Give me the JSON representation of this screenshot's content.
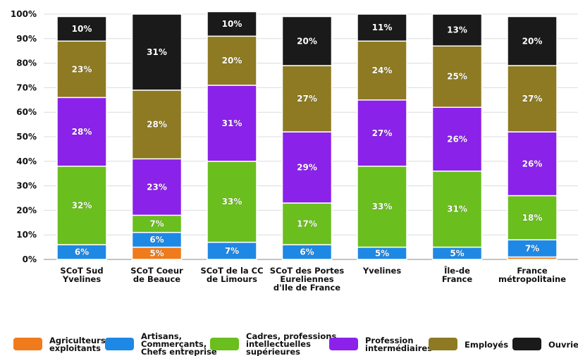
{
  "chart_data": {
    "type": "bar",
    "stacked": true,
    "normalized": true,
    "categories": [
      "SCoT Sud\nYvelines",
      "SCoT Coeur\nde Beauce",
      "SCoT de la CC\nde Limours",
      "SCoT des Portes\nEureliennes\nd'Ile de France",
      "Yvelines",
      "Île-de\nFrance",
      "France\nmétropolitaine"
    ],
    "series": [
      {
        "name": "Agriculteurs, exploitants",
        "color": "#f07b1c",
        "values": [
          0,
          5,
          0,
          0,
          0,
          0,
          1
        ]
      },
      {
        "name": "Artisans, Commerçants, Chefs entreprise",
        "color": "#1e88e5",
        "values": [
          6,
          6,
          7,
          6,
          5,
          5,
          7
        ]
      },
      {
        "name": "Cadres, professions intellectuelles supérieures",
        "color": "#6abe1e",
        "values": [
          32,
          7,
          33,
          17,
          33,
          31,
          18
        ]
      },
      {
        "name": "Profession intermédiaires",
        "color": "#8a22ea",
        "values": [
          28,
          23,
          31,
          29,
          27,
          26,
          26
        ]
      },
      {
        "name": "Employés",
        "color": "#8d7a22",
        "values": [
          23,
          28,
          20,
          27,
          24,
          25,
          27
        ]
      },
      {
        "name": "Ouvriers",
        "color": "#1a1a1a",
        "values": [
          10,
          31,
          10,
          20,
          11,
          13,
          20
        ]
      }
    ],
    "labels": [
      [
        "",
        "5%",
        "",
        "",
        "",
        "",
        ""
      ],
      [
        "6%",
        "6%",
        "7%",
        "6%",
        "5%",
        "5%",
        "7%"
      ],
      [
        "32%",
        "7%",
        "33%",
        "17%",
        "33%",
        "31%",
        "18%"
      ],
      [
        "28%",
        "23%",
        "31%",
        "29%",
        "27%",
        "26%",
        "26%"
      ],
      [
        "23%",
        "28%",
        "20%",
        "27%",
        "24%",
        "25%",
        "27%"
      ],
      [
        "10%",
        "31%",
        "10%",
        "20%",
        "11%",
        "13%",
        "20%"
      ]
    ],
    "yticks": [
      "0%",
      "10%",
      "20%",
      "30%",
      "40%",
      "50%",
      "60%",
      "70%",
      "80%",
      "90%",
      "100%"
    ],
    "ylim": [
      0,
      100
    ],
    "grid": true,
    "legend_position": "bottom"
  },
  "legend": [
    {
      "label": "Agriculteurs,\nexploitants",
      "color": "#f07b1c"
    },
    {
      "label": "Artisans,\nCommerçants,\nChefs entreprise",
      "color": "#1e88e5"
    },
    {
      "label": "Cadres, professions\nintellectuelles\nsupérieures",
      "color": "#6abe1e"
    },
    {
      "label": "Profession\nintermédiaires",
      "color": "#8a22ea"
    },
    {
      "label": "Employés",
      "color": "#8d7a22"
    },
    {
      "label": "Ouvriers",
      "color": "#1a1a1a"
    }
  ]
}
